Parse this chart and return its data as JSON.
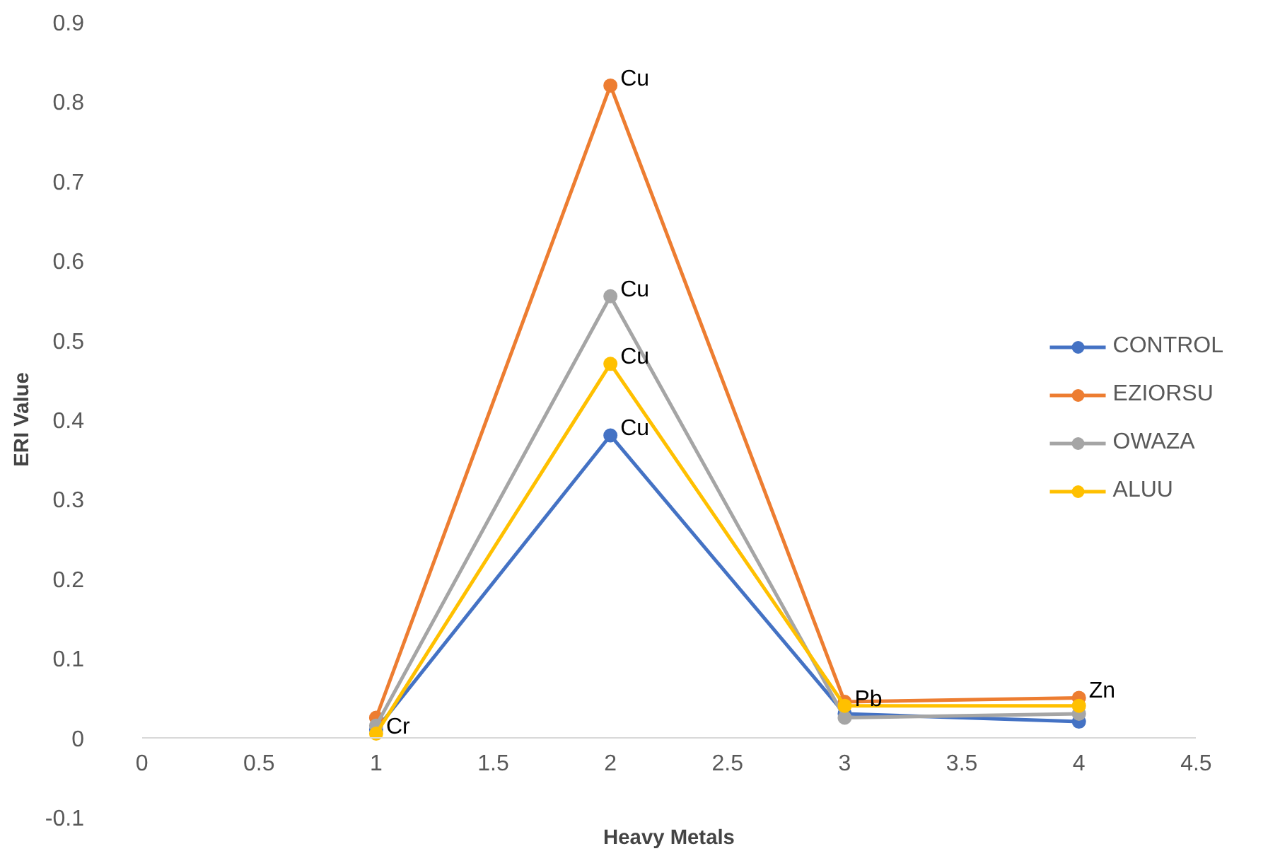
{
  "chart_data": {
    "type": "line",
    "xlabel": "Heavy Metals",
    "ylabel": "ERI Value",
    "x": [
      1,
      2,
      3,
      4
    ],
    "series": [
      {
        "name": "CONTROL",
        "color": "#4472c4",
        "values": [
          0.01,
          0.38,
          0.03,
          0.02
        ]
      },
      {
        "name": "EZIORSU",
        "color": "#ed7d31",
        "values": [
          0.025,
          0.82,
          0.045,
          0.05
        ]
      },
      {
        "name": "OWAZA",
        "color": "#a5a5a5",
        "values": [
          0.015,
          0.555,
          0.025,
          0.03
        ]
      },
      {
        "name": "ALUU",
        "color": "#ffc000",
        "values": [
          0.005,
          0.47,
          0.04,
          0.04
        ]
      }
    ],
    "annotations": [
      {
        "text": "Cr",
        "x": 1,
        "y": 0.005
      },
      {
        "text": "Cu",
        "x": 2,
        "y": 0.82
      },
      {
        "text": "Cu",
        "x": 2,
        "y": 0.555
      },
      {
        "text": "Cu",
        "x": 2,
        "y": 0.47
      },
      {
        "text": "Cu",
        "x": 2,
        "y": 0.38
      },
      {
        "text": "Pb",
        "x": 3,
        "y": 0.04
      },
      {
        "text": "Zn",
        "x": 4,
        "y": 0.05
      }
    ],
    "xlim": [
      0,
      4.5
    ],
    "xticks": [
      0,
      0.5,
      1,
      1.5,
      2,
      2.5,
      3,
      3.5,
      4,
      4.5
    ],
    "ylim": [
      -0.1,
      0.9
    ],
    "yticks": [
      -0.1,
      0,
      0.1,
      0.2,
      0.3,
      0.4,
      0.5,
      0.6,
      0.7,
      0.8,
      0.9
    ],
    "grid": false,
    "legend": "right",
    "marker": "circle",
    "line_style": "solid"
  }
}
